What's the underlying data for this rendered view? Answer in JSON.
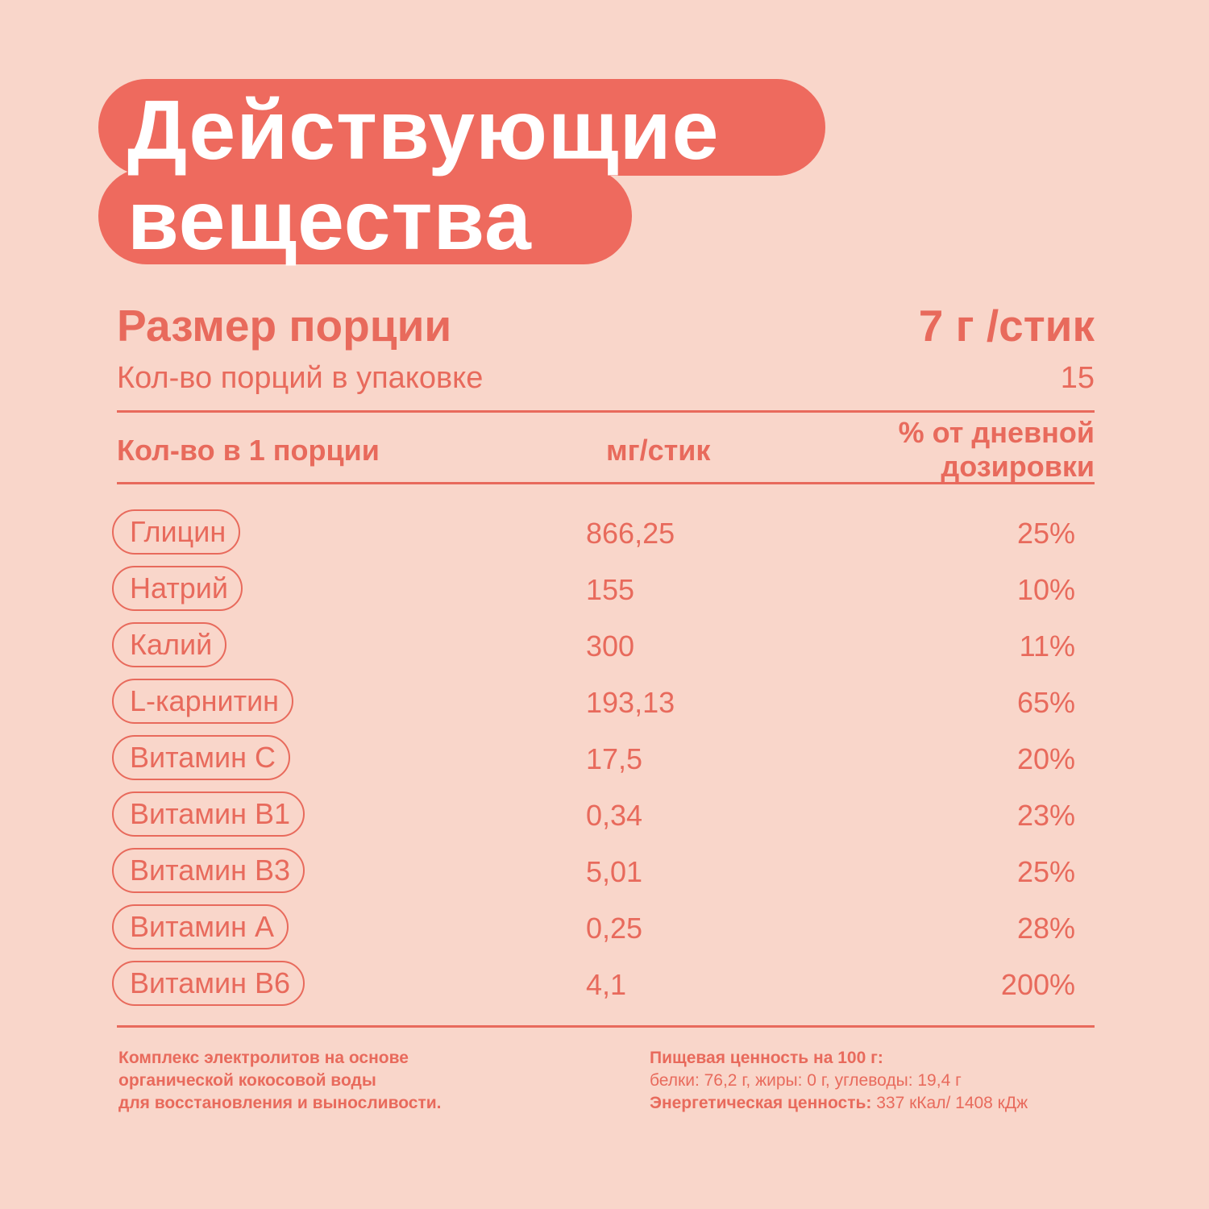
{
  "title": {
    "line1": "Действующие",
    "line2": "вещества"
  },
  "serving": {
    "label": "Размер порции",
    "value": "7 г /стик",
    "count_label": "Кол-во порций в упаковке",
    "count_value": "15"
  },
  "table": {
    "headers": {
      "amount": "Кол-во в 1 порции",
      "mg": "мг/стик",
      "daily": "% от дневной дозировки"
    },
    "rows": [
      {
        "name": "Глицин",
        "mg": "866,25",
        "pct": "25%"
      },
      {
        "name": "Натрий",
        "mg": "155",
        "pct": "10%"
      },
      {
        "name": "Калий",
        "mg": "300",
        "pct": "11%"
      },
      {
        "name": "L-карнитин",
        "mg": "193,13",
        "pct": "65%"
      },
      {
        "name": "Витамин С",
        "mg": "17,5",
        "pct": "20%"
      },
      {
        "name": "Витамин В1",
        "mg": "0,34",
        "pct": "23%"
      },
      {
        "name": "Витамин В3",
        "mg": "5,01",
        "pct": "25%"
      },
      {
        "name": "Витамин А",
        "mg": "0,25",
        "pct": "28%"
      },
      {
        "name": "Витамин В6",
        "mg": "4,1",
        "pct": "200%"
      }
    ]
  },
  "footer": {
    "left": [
      "Комплекс электролитов на основе",
      "органической кокосовой воды",
      "для восстановления и выносливости."
    ],
    "nutrition_title": "Пищевая ценность на 100 г:",
    "nutrition_values": "белки: 76,2 г, жиры: 0 г, углеводы: 19,4 г",
    "energy_label": "Энергетическая ценность:",
    "energy_value": " 337 кКал/ 1408 кДж"
  },
  "colors": {
    "background": "#f9d6ca",
    "accent": "#ee6a5e",
    "text": "#e86a5c"
  }
}
